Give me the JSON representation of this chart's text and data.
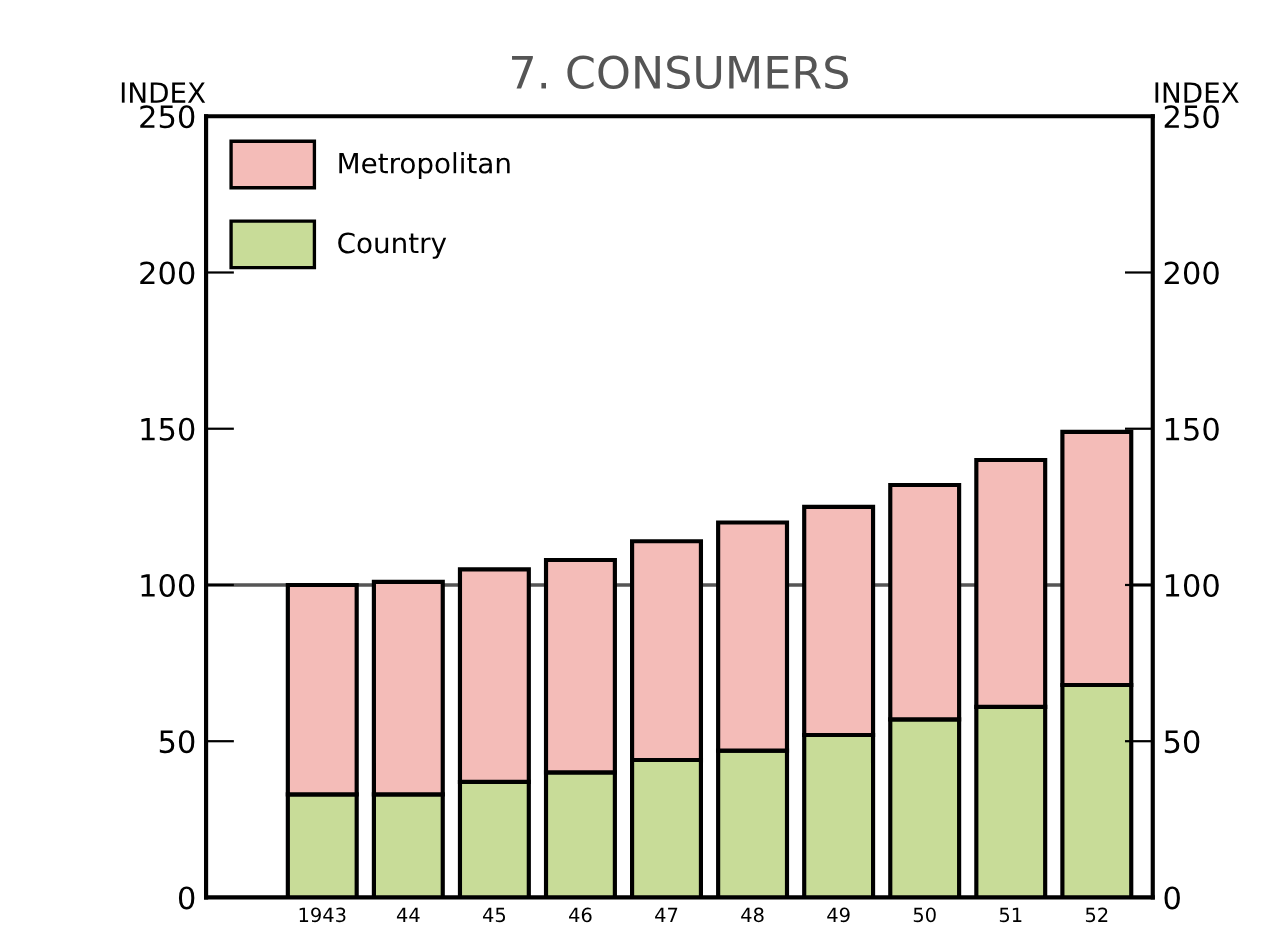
{
  "chart_data": {
    "type": "bar",
    "title": "7. CONSUMERS",
    "ylabel": "INDEX",
    "y2label": "INDEX",
    "categories": [
      "1943",
      "44",
      "45",
      "46",
      "47",
      "48",
      "49",
      "50",
      "51",
      "52"
    ],
    "stacked": true,
    "series": [
      {
        "name": "Country",
        "color": "#c8dc98",
        "values": [
          33,
          33,
          37,
          40,
          44,
          47,
          52,
          57,
          61,
          68
        ]
      },
      {
        "name": "Metropolitan",
        "color": "#f4bcb8",
        "values": [
          67,
          68,
          68,
          68,
          70,
          73,
          73,
          75,
          79,
          81
        ]
      }
    ],
    "ylim": [
      0,
      250
    ],
    "yticks": [
      0,
      50,
      100,
      150,
      200,
      250
    ],
    "y2lim": [
      0,
      250
    ],
    "y2ticks": [
      0,
      50,
      100,
      150,
      200,
      250
    ],
    "ref_lines": [
      {
        "axis": "y",
        "value": 100
      }
    ],
    "legend": "top left",
    "grid": false
  }
}
